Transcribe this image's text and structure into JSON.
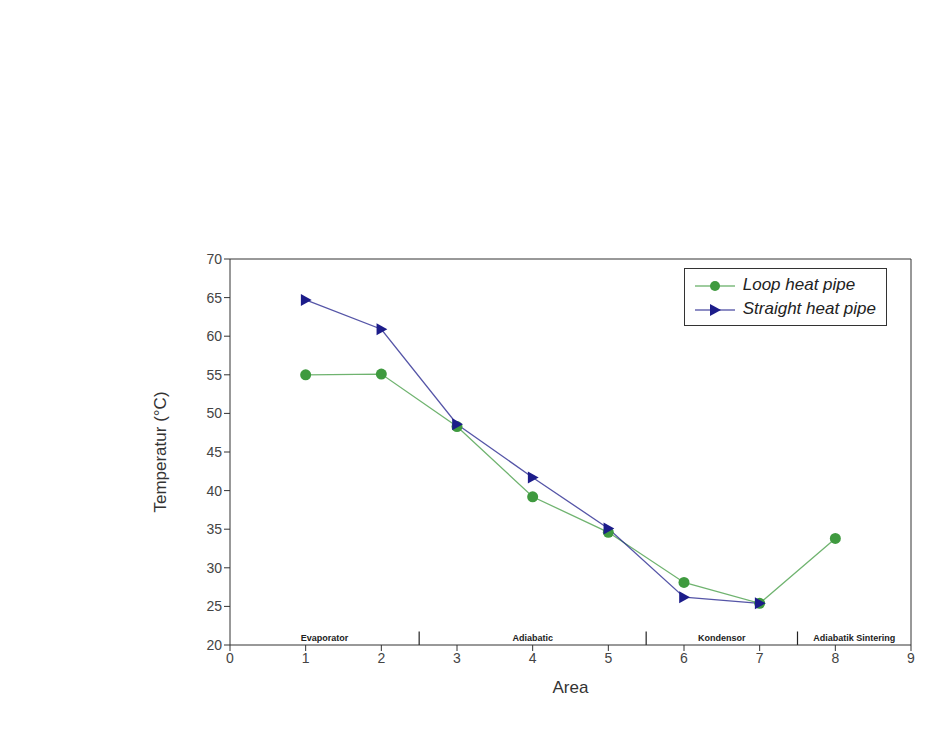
{
  "chart_data": {
    "type": "line",
    "x_label": "Area",
    "y_label": "Temperatur (°C)",
    "x": [
      1,
      2,
      3,
      4,
      5,
      6,
      7,
      8
    ],
    "series": [
      {
        "name": "Loop heat pipe",
        "color": "#3f9a3f",
        "marker": "circle",
        "values": [
          55.0,
          55.1,
          48.3,
          39.2,
          34.6,
          28.1,
          25.4,
          33.8
        ]
      },
      {
        "name": "Straight heat pipe",
        "color": "#1c1c8a",
        "marker": "triangle-right",
        "values": [
          64.7,
          60.9,
          48.6,
          41.7,
          35.1,
          26.2,
          25.4,
          null
        ]
      }
    ],
    "xlim": [
      0,
      9
    ],
    "ylim": [
      20,
      70
    ],
    "xticks": [
      0,
      1,
      2,
      3,
      4,
      5,
      6,
      7,
      8,
      9
    ],
    "yticks": [
      20,
      25,
      30,
      35,
      40,
      45,
      50,
      55,
      60,
      65,
      70
    ],
    "regions": [
      {
        "label": "Evaporator",
        "x": [
          0,
          2.5
        ]
      },
      {
        "label": "Adiabatic",
        "x": [
          2.5,
          5.5
        ]
      },
      {
        "label": "Kondensor",
        "x": [
          5.5,
          7.5
        ]
      },
      {
        "label": "Adiabatik Sintering",
        "x": [
          7.5,
          9
        ]
      }
    ],
    "legend": "upper right",
    "grid": false
  }
}
